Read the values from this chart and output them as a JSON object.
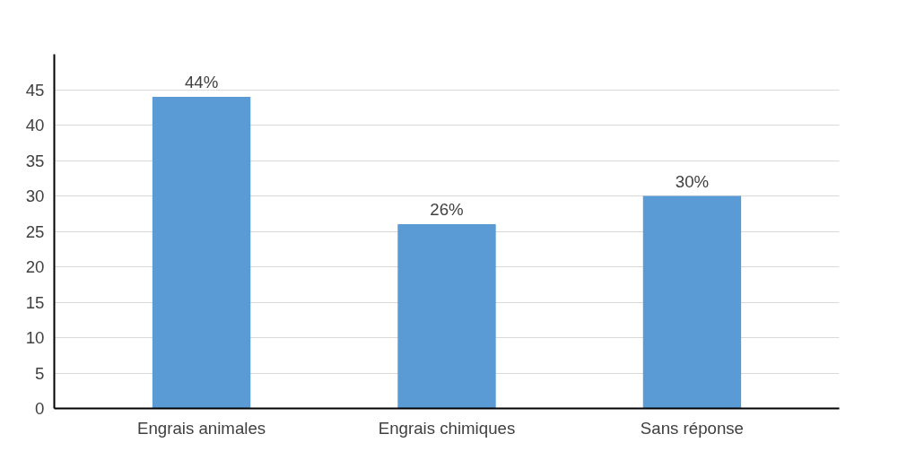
{
  "chart_data": {
    "type": "bar",
    "categories": [
      "Engrais animales",
      "Engrais chimiques",
      "Sans réponse"
    ],
    "values": [
      44,
      26,
      30
    ],
    "value_labels": [
      "44%",
      "26%",
      "30%"
    ],
    "color": "#5b9bd5",
    "ylim": [
      0,
      50
    ],
    "yticks": [
      0,
      5,
      10,
      15,
      20,
      25,
      30,
      35,
      40,
      45
    ],
    "grid": "y"
  }
}
